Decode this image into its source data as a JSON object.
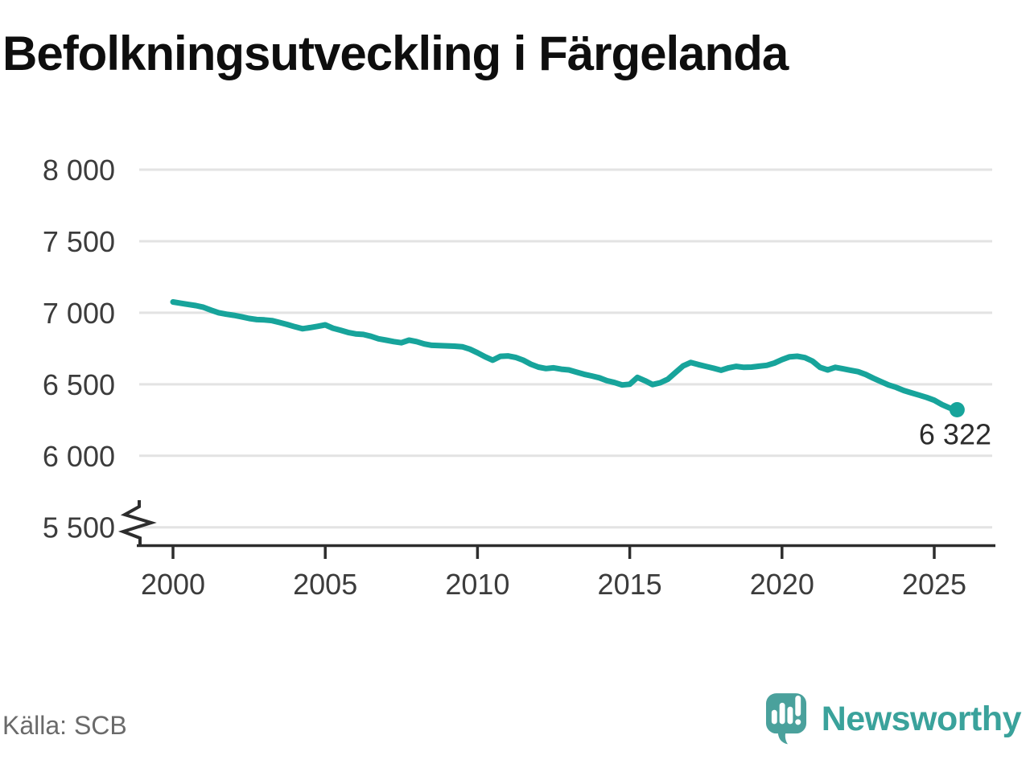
{
  "title": "Befolkningsutveckling i Färgelanda",
  "source": "Källa: SCB",
  "branding": {
    "name": "Newsworthy",
    "logo_icon": "newsworthy-speech-bubble-bar-chart-icon"
  },
  "colors": {
    "line": "#17a49b",
    "marker": "#17a49b",
    "grid": "#e3e3e3",
    "axis": "#2d2d2d",
    "tick_text": "#3c3c3c",
    "annotation_text": "#2c2c2c",
    "source_text": "#6a6a6a",
    "brand_teal": "#4aa19c",
    "brand_text": "#3aa29b",
    "title_text": "#0e0e0e",
    "background": "#ffffff"
  },
  "chart_data": {
    "type": "line",
    "title": "Befolkningsutveckling i Färgelanda",
    "xlabel": "",
    "ylabel": "",
    "x_start": 2000,
    "x_step": 0.25,
    "x_ticks": [
      2000,
      2005,
      2010,
      2015,
      2020,
      2025
    ],
    "x_tick_labels": [
      "2000",
      "2005",
      "2010",
      "2015",
      "2020",
      "2025"
    ],
    "y_ticks": [
      8000,
      7500,
      7000,
      6500,
      6000,
      5500
    ],
    "y_tick_labels": [
      "8 000",
      "7 500",
      "7 000",
      "6 500",
      "6 000",
      "5 500"
    ],
    "ylim": [
      5500,
      8000
    ],
    "axis_break": true,
    "grid": "horizontal",
    "legend": "none",
    "values": [
      7075,
      7066,
      7058,
      7050,
      7038,
      7018,
      7000,
      6990,
      6982,
      6972,
      6960,
      6952,
      6950,
      6945,
      6932,
      6918,
      6902,
      6888,
      6896,
      6905,
      6915,
      6892,
      6878,
      6862,
      6852,
      6848,
      6835,
      6818,
      6808,
      6798,
      6790,
      6808,
      6798,
      6782,
      6772,
      6770,
      6768,
      6766,
      6762,
      6745,
      6720,
      6692,
      6668,
      6695,
      6698,
      6688,
      6668,
      6640,
      6620,
      6610,
      6615,
      6605,
      6600,
      6585,
      6570,
      6558,
      6545,
      6525,
      6512,
      6495,
      6500,
      6548,
      6525,
      6498,
      6510,
      6535,
      6582,
      6628,
      6652,
      6638,
      6625,
      6612,
      6598,
      6615,
      6625,
      6618,
      6620,
      6626,
      6632,
      6648,
      6672,
      6692,
      6696,
      6686,
      6662,
      6618,
      6600,
      6618,
      6608,
      6598,
      6588,
      6568,
      6542,
      6518,
      6495,
      6478,
      6456,
      6440,
      6424,
      6408,
      6388,
      6358,
      6335,
      6322
    ],
    "last_point": {
      "value": 6322,
      "label": "6 322"
    }
  }
}
